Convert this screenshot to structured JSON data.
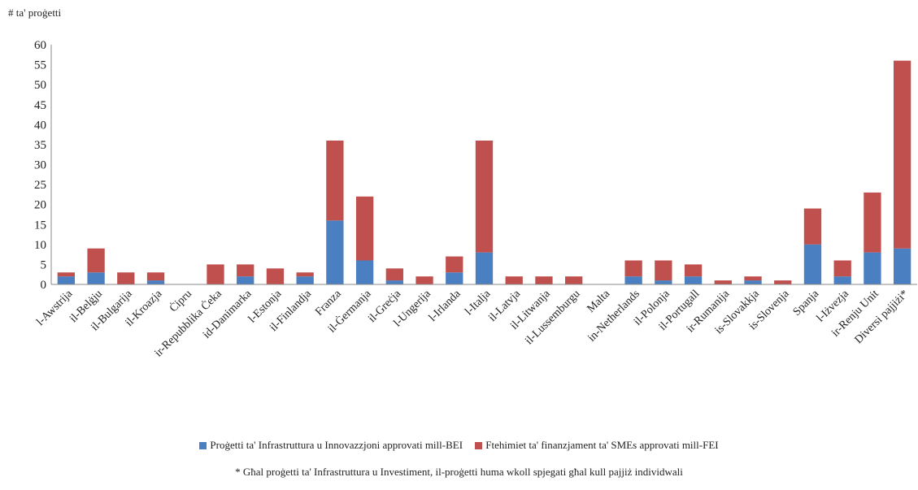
{
  "chart_data": {
    "type": "bar",
    "stacked": true,
    "ylabel": "# ta' proġetti",
    "xlabel": "",
    "ylim": [
      0,
      60
    ],
    "yticks": [
      0,
      5,
      10,
      15,
      20,
      25,
      30,
      35,
      40,
      45,
      50,
      55,
      60
    ],
    "grid": false,
    "legend_position": "bottom",
    "categories": [
      "l-Awstrija",
      "il-Belġju",
      "il-Bulgarija",
      "il-Kroazja",
      "Ċipru",
      "ir-Repubblika Ċeka",
      "id-Danimarka",
      "l-Estonja",
      "il-Finlandja",
      "Franza",
      "il-Ġermanja",
      "il-Greċja",
      "l-Ungerija",
      "l-Irlanda",
      "l-Italja",
      "il-Latvja",
      "il-Litwanja",
      "il-Lussemburgu",
      "Malta",
      "in-Netherlands",
      "il-Polonja",
      "il-Portugall",
      "ir-Rumanija",
      "is-Slovakkja",
      "is-Slovenja",
      "Spanja",
      "l-Iżvezja",
      "ir-Renju Unit",
      "Diversi pajjiżi*"
    ],
    "series": [
      {
        "name": "Proġetti ta' Infrastruttura u Innovazzjoni approvati mill-BEI",
        "color": "#4a7fc1",
        "values": [
          2,
          3,
          0,
          1,
          0,
          0,
          2,
          0,
          2,
          16,
          6,
          1,
          0,
          3,
          8,
          0,
          0,
          0,
          0,
          2,
          1,
          2,
          0,
          1,
          0,
          10,
          2,
          8,
          9
        ]
      },
      {
        "name": "Ftehimiet ta' finanzjament ta' SMEs approvati mill-FEI",
        "color": "#c0504d",
        "values": [
          1,
          6,
          3,
          2,
          0,
          5,
          3,
          4,
          1,
          20,
          16,
          3,
          2,
          4,
          28,
          2,
          2,
          2,
          0,
          4,
          5,
          3,
          1,
          1,
          1,
          9,
          4,
          15,
          47
        ]
      }
    ],
    "footnote": "* Għal proġetti ta' Infrastruttura u Investiment, il-proġetti huma wkoll spjegati għal kull pajjiż individwali"
  }
}
